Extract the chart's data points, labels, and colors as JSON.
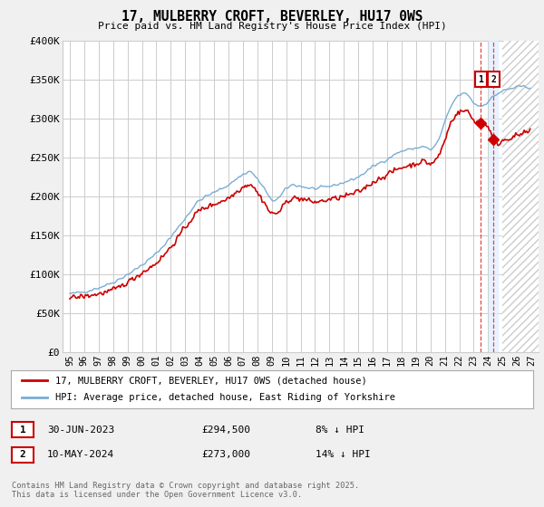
{
  "title": "17, MULBERRY CROFT, BEVERLEY, HU17 0WS",
  "subtitle": "Price paid vs. HM Land Registry's House Price Index (HPI)",
  "ylim": [
    0,
    400000
  ],
  "yticks": [
    0,
    50000,
    100000,
    150000,
    200000,
    250000,
    300000,
    350000,
    400000
  ],
  "ytick_labels": [
    "£0",
    "£50K",
    "£100K",
    "£150K",
    "£200K",
    "£250K",
    "£300K",
    "£350K",
    "£400K"
  ],
  "xlim": [
    1994.5,
    2027.5
  ],
  "xticks": [
    1995,
    1996,
    1997,
    1998,
    1999,
    2000,
    2001,
    2002,
    2003,
    2004,
    2005,
    2006,
    2007,
    2008,
    2009,
    2010,
    2011,
    2012,
    2013,
    2014,
    2015,
    2016,
    2017,
    2018,
    2019,
    2020,
    2021,
    2022,
    2023,
    2024,
    2025,
    2026,
    2027
  ],
  "line_red_color": "#cc0000",
  "line_blue_color": "#7aadd4",
  "transaction1_x": 2023.496,
  "transaction1_y": 294500,
  "transaction2_x": 2024.37,
  "transaction2_y": 273000,
  "transaction1_label": "1",
  "transaction2_label": "2",
  "legend_line1": "17, MULBERRY CROFT, BEVERLEY, HU17 0WS (detached house)",
  "legend_line2": "HPI: Average price, detached house, East Riding of Yorkshire",
  "table_row1": [
    "1",
    "30-JUN-2023",
    "£294,500",
    "8% ↓ HPI"
  ],
  "table_row2": [
    "2",
    "10-MAY-2024",
    "£273,000",
    "14% ↓ HPI"
  ],
  "copyright": "Contains HM Land Registry data © Crown copyright and database right 2025.\nThis data is licensed under the Open Government Licence v3.0.",
  "background_color": "#f0f0f0",
  "plot_bg_color": "#ffffff",
  "grid_color": "#cccccc",
  "vline1_color": "#dd3333",
  "vline2_color": "#cc99aa",
  "shade_color": "#ddeeff",
  "hatch_color": "#cccccc"
}
